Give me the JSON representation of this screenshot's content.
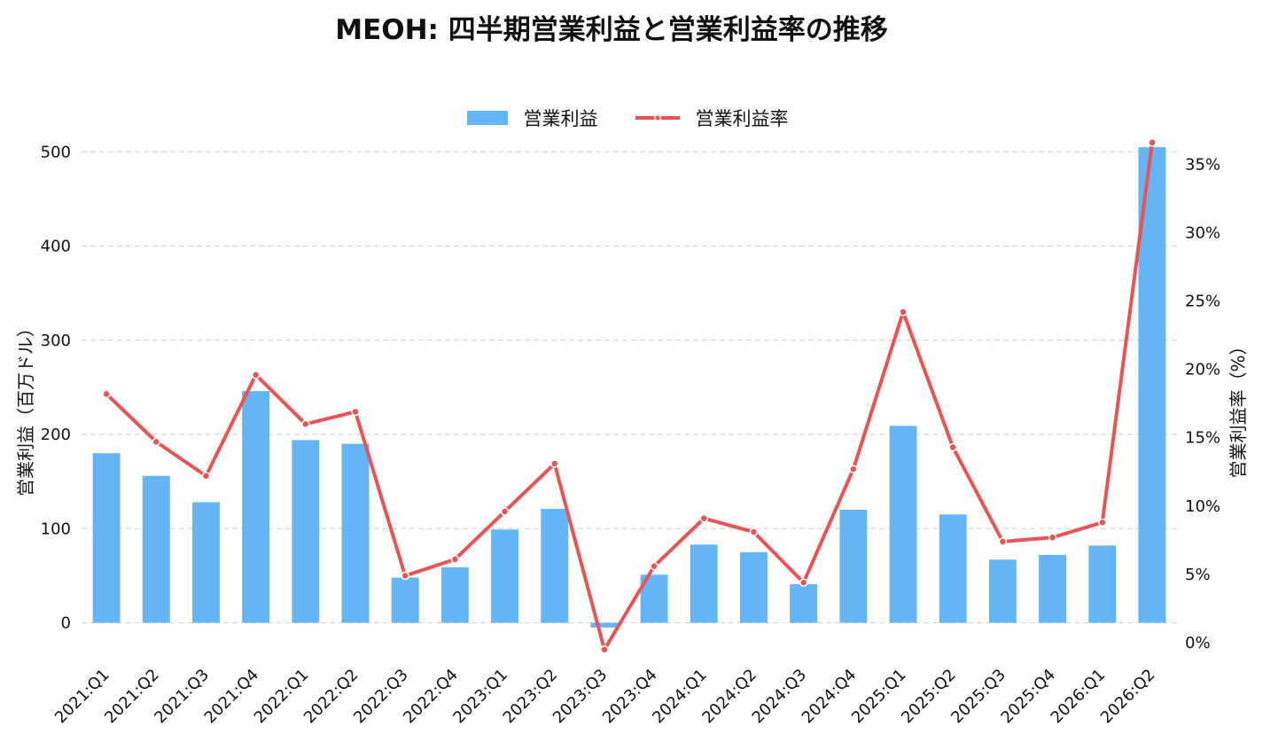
{
  "chart_data": {
    "type": "bar",
    "title": "MEOH: 四半期営業利益と営業利益率の推移",
    "ylabel": "営業利益（百万ドル）",
    "y2label": "営業利益率（%）",
    "ylim": [
      -40,
      520
    ],
    "y2lim": [
      -1.3,
      37.3
    ],
    "yticks": [
      0,
      100,
      200,
      300,
      400,
      500
    ],
    "y2ticks": [
      0,
      5,
      10,
      15,
      20,
      25,
      30,
      35
    ],
    "y2tick_labels": [
      "0%",
      "5%",
      "10%",
      "15%",
      "20%",
      "25%",
      "30%",
      "35%"
    ],
    "grid": true,
    "legend_position": "top-center",
    "categories": [
      "2021:Q1",
      "2021:Q2",
      "2021:Q3",
      "2021:Q4",
      "2022:Q1",
      "2022:Q2",
      "2022:Q3",
      "2022:Q4",
      "2023:Q1",
      "2023:Q2",
      "2023:Q3",
      "2023:Q4",
      "2024:Q1",
      "2024:Q2",
      "2024:Q3",
      "2024:Q4",
      "2025:Q1",
      "2025:Q2",
      "2025:Q3",
      "2025:Q4",
      "2026:Q1",
      "2026:Q2"
    ],
    "series": [
      {
        "name": "営業利益",
        "type": "bar",
        "axis": "left",
        "color": "#64b5f6",
        "values": [
          180,
          156,
          128,
          246,
          194,
          190,
          48,
          59,
          99,
          121,
          -5,
          51,
          83,
          75,
          41,
          120,
          209,
          115,
          67,
          72,
          82,
          505
        ]
      },
      {
        "name": "営業利益率",
        "type": "line",
        "axis": "right",
        "color": "#e85454",
        "values": [
          18.2,
          14.7,
          12.2,
          19.6,
          16.0,
          16.9,
          4.9,
          6.1,
          9.6,
          13.1,
          -0.5,
          5.6,
          9.1,
          8.1,
          4.4,
          12.7,
          24.2,
          14.3,
          7.4,
          7.7,
          8.8,
          36.6
        ]
      }
    ]
  }
}
